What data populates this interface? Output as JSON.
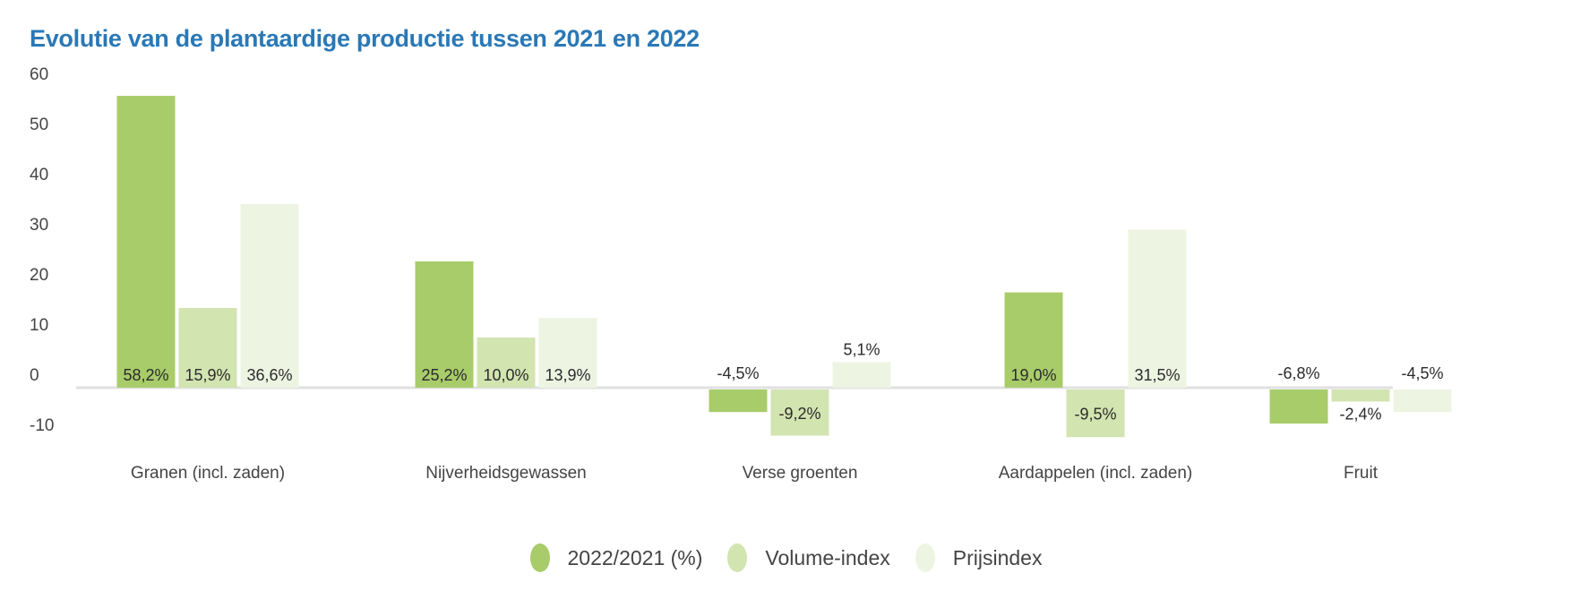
{
  "chart_data": {
    "type": "bar",
    "title": "Evolutie van de plantaardige productie tussen 2021 en 2022",
    "xlabel": "",
    "ylabel": "",
    "ylim": [
      -10,
      60
    ],
    "yticks": [
      60,
      50,
      40,
      30,
      20,
      10,
      0,
      -10
    ],
    "grid": false,
    "legend_position": "bottom-center",
    "categories": [
      "Granen (incl. zaden)",
      "Nijverheidsgewassen",
      "Verse groenten",
      "Aardappelen (incl. zaden)",
      "Fruit"
    ],
    "series": [
      {
        "name": "2022/2021 (%)",
        "color": "#a8cc6a",
        "values": [
          58.2,
          25.2,
          -4.5,
          19.0,
          -6.8
        ],
        "labels": [
          "58,2%",
          "25,2%",
          "-4,5%",
          "19,0%",
          "-6,8%"
        ]
      },
      {
        "name": "Volume-index",
        "color": "#d2e4b0",
        "values": [
          15.9,
          10.0,
          -9.2,
          -9.5,
          -2.4
        ],
        "labels": [
          "15,9%",
          "10,0%",
          "-9,2%",
          "-9,5%",
          "-2,4%"
        ]
      },
      {
        "name": "Prijsindex",
        "color": "#eef4e2",
        "values": [
          36.6,
          13.9,
          5.1,
          31.5,
          -4.5
        ],
        "labels": [
          "36,6%",
          "13,9%",
          "5,1%",
          "31,5%",
          "-4,5%"
        ]
      }
    ]
  }
}
